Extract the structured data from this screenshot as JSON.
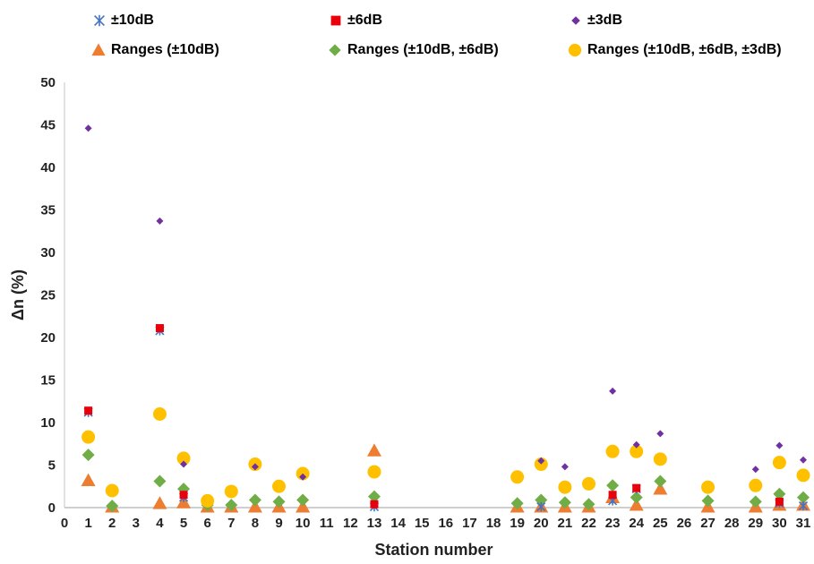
{
  "chart_data": {
    "type": "scatter",
    "xlabel": "Station number",
    "ylabel": "Δn (%)",
    "xlim": [
      0,
      31
    ],
    "ylim": [
      0,
      50
    ],
    "x_ticks": [
      0,
      1,
      2,
      3,
      4,
      5,
      6,
      7,
      8,
      9,
      10,
      11,
      12,
      13,
      14,
      15,
      16,
      17,
      18,
      19,
      20,
      21,
      22,
      23,
      24,
      25,
      26,
      27,
      28,
      29,
      30,
      31
    ],
    "y_ticks": [
      0,
      5,
      10,
      15,
      20,
      25,
      30,
      35,
      40,
      45,
      50
    ],
    "grid": false,
    "legend_position": "top",
    "series": [
      {
        "name": "±10dB",
        "marker": "x",
        "color": "#4472C4",
        "points": [
          [
            1,
            11.2
          ],
          [
            4,
            20.8
          ],
          [
            5,
            1.2
          ],
          [
            13,
            0.1
          ],
          [
            20,
            0.1
          ],
          [
            23,
            0.8
          ],
          [
            24,
            2.2
          ],
          [
            30,
            0.5
          ],
          [
            31,
            0.2
          ]
        ]
      },
      {
        "name": "±6dB",
        "marker": "square",
        "color": "#E8000B",
        "points": [
          [
            1,
            11.4
          ],
          [
            4,
            21.1
          ],
          [
            5,
            1.5
          ],
          [
            13,
            0.4
          ],
          [
            23,
            1.5
          ],
          [
            24,
            2.3
          ],
          [
            30,
            0.7
          ]
        ]
      },
      {
        "name": "±3dB",
        "marker": "diamond-small",
        "color": "#7030A0",
        "points": [
          [
            1,
            44.6
          ],
          [
            4,
            33.7
          ],
          [
            5,
            5.1
          ],
          [
            8,
            4.8
          ],
          [
            10,
            3.6
          ],
          [
            20,
            5.5
          ],
          [
            21,
            4.8
          ],
          [
            23,
            13.7
          ],
          [
            24,
            7.4
          ],
          [
            25,
            8.7
          ],
          [
            29,
            4.5
          ],
          [
            30,
            7.3
          ],
          [
            31,
            5.6
          ]
        ]
      },
      {
        "name": "Ranges (±10dB)",
        "marker": "triangle",
        "color": "#ED7D31",
        "points": [
          [
            1,
            3.2
          ],
          [
            2,
            0.1
          ],
          [
            4,
            0.5
          ],
          [
            5,
            0.6
          ],
          [
            6,
            0.1
          ],
          [
            7,
            0.1
          ],
          [
            8,
            0.1
          ],
          [
            9,
            0.1
          ],
          [
            10,
            0.1
          ],
          [
            13,
            6.7
          ],
          [
            19,
            0.1
          ],
          [
            20,
            0.1
          ],
          [
            21,
            0.1
          ],
          [
            22,
            0.1
          ],
          [
            23,
            1.2
          ],
          [
            24,
            0.3
          ],
          [
            25,
            2.2
          ],
          [
            27,
            0.1
          ],
          [
            29,
            0.1
          ],
          [
            30,
            0.3
          ],
          [
            31,
            0.3
          ]
        ]
      },
      {
        "name": "Ranges (±10dB, ±6dB)",
        "marker": "diamond",
        "color": "#70AD47",
        "points": [
          [
            1,
            6.2
          ],
          [
            2,
            0.2
          ],
          [
            4,
            3.1
          ],
          [
            5,
            2.2
          ],
          [
            6,
            0.3
          ],
          [
            7,
            0.3
          ],
          [
            8,
            0.9
          ],
          [
            9,
            0.7
          ],
          [
            10,
            0.9
          ],
          [
            13,
            1.3
          ],
          [
            19,
            0.5
          ],
          [
            20,
            0.9
          ],
          [
            21,
            0.6
          ],
          [
            22,
            0.4
          ],
          [
            23,
            2.6
          ],
          [
            24,
            1.2
          ],
          [
            25,
            3.1
          ],
          [
            27,
            0.8
          ],
          [
            29,
            0.7
          ],
          [
            30,
            1.6
          ],
          [
            31,
            1.2
          ]
        ]
      },
      {
        "name": "Ranges (±10dB, ±6dB, ±3dB)",
        "marker": "circle",
        "color": "#FFC000",
        "points": [
          [
            1,
            8.3
          ],
          [
            2,
            2.0
          ],
          [
            4,
            11.0
          ],
          [
            5,
            5.8
          ],
          [
            6,
            0.8
          ],
          [
            7,
            1.9
          ],
          [
            8,
            5.1
          ],
          [
            9,
            2.5
          ],
          [
            10,
            4.0
          ],
          [
            13,
            4.2
          ],
          [
            19,
            3.6
          ],
          [
            20,
            5.1
          ],
          [
            21,
            2.4
          ],
          [
            22,
            2.8
          ],
          [
            23,
            6.6
          ],
          [
            24,
            6.6
          ],
          [
            25,
            5.7
          ],
          [
            27,
            2.4
          ],
          [
            29,
            2.6
          ],
          [
            30,
            5.3
          ],
          [
            31,
            3.8
          ]
        ]
      }
    ]
  }
}
